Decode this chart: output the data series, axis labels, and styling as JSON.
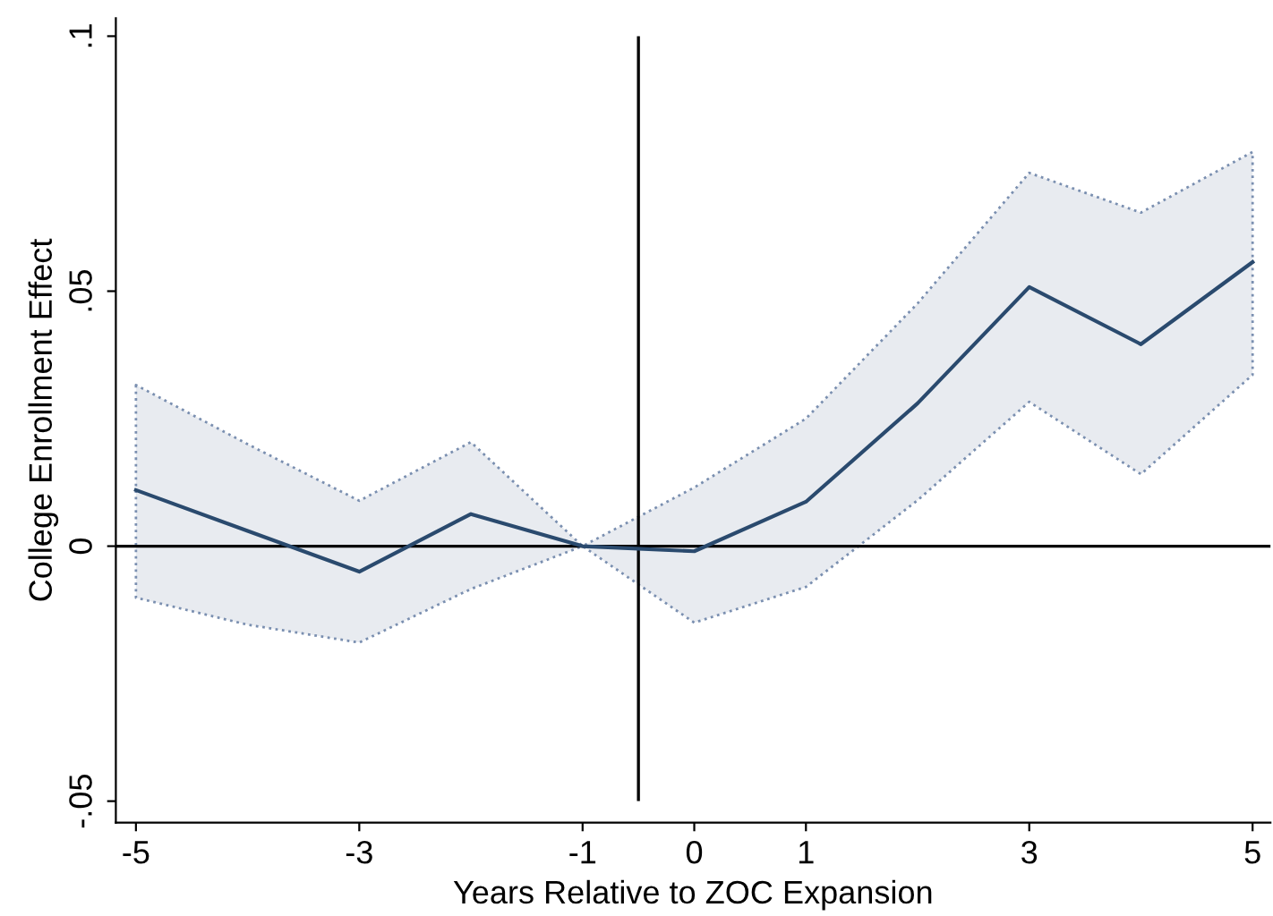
{
  "chart_data": {
    "type": "line",
    "xlabel": "Years Relative to ZOC Expansion",
    "ylabel": "College Enrollment Effect",
    "x": [
      -5,
      -4,
      -3,
      -2,
      -1,
      0,
      1,
      2,
      3,
      4,
      5
    ],
    "series": [
      {
        "color": "#2a4a6e",
        "values": [
          0.011,
          0.003,
          -0.005,
          0.0063,
          0,
          -0.001,
          0.0087,
          0.028,
          0.0508,
          0.0396,
          0.0557
        ],
        "lower": [
          -0.0101,
          -0.0154,
          -0.0189,
          -0.0084,
          0,
          -0.015,
          -0.008,
          0.009,
          0.0283,
          0.0141,
          0.0336
        ],
        "upper": [
          0.0316,
          0.02,
          0.0089,
          0.0204,
          0,
          0.0115,
          0.025,
          0.0476,
          0.0732,
          0.0654,
          0.0773
        ]
      }
    ],
    "xlim": [
      -5.18,
      5.16
    ],
    "ylim": [
      -0.0542,
      0.1035
    ],
    "xticks": [
      -5,
      -3,
      -1,
      0,
      1,
      3,
      5
    ],
    "yticks": [
      {
        "value": -0.05,
        "label": "-.05"
      },
      0,
      {
        "value": 0.05,
        "label": ".05"
      },
      {
        "value": 0.1,
        "label": ".1"
      }
    ],
    "ref_lines": [
      {
        "axis": "y",
        "value": 0,
        "color": "#000000"
      },
      {
        "axis": "x",
        "value": -0.5,
        "color": "#000000"
      }
    ]
  }
}
